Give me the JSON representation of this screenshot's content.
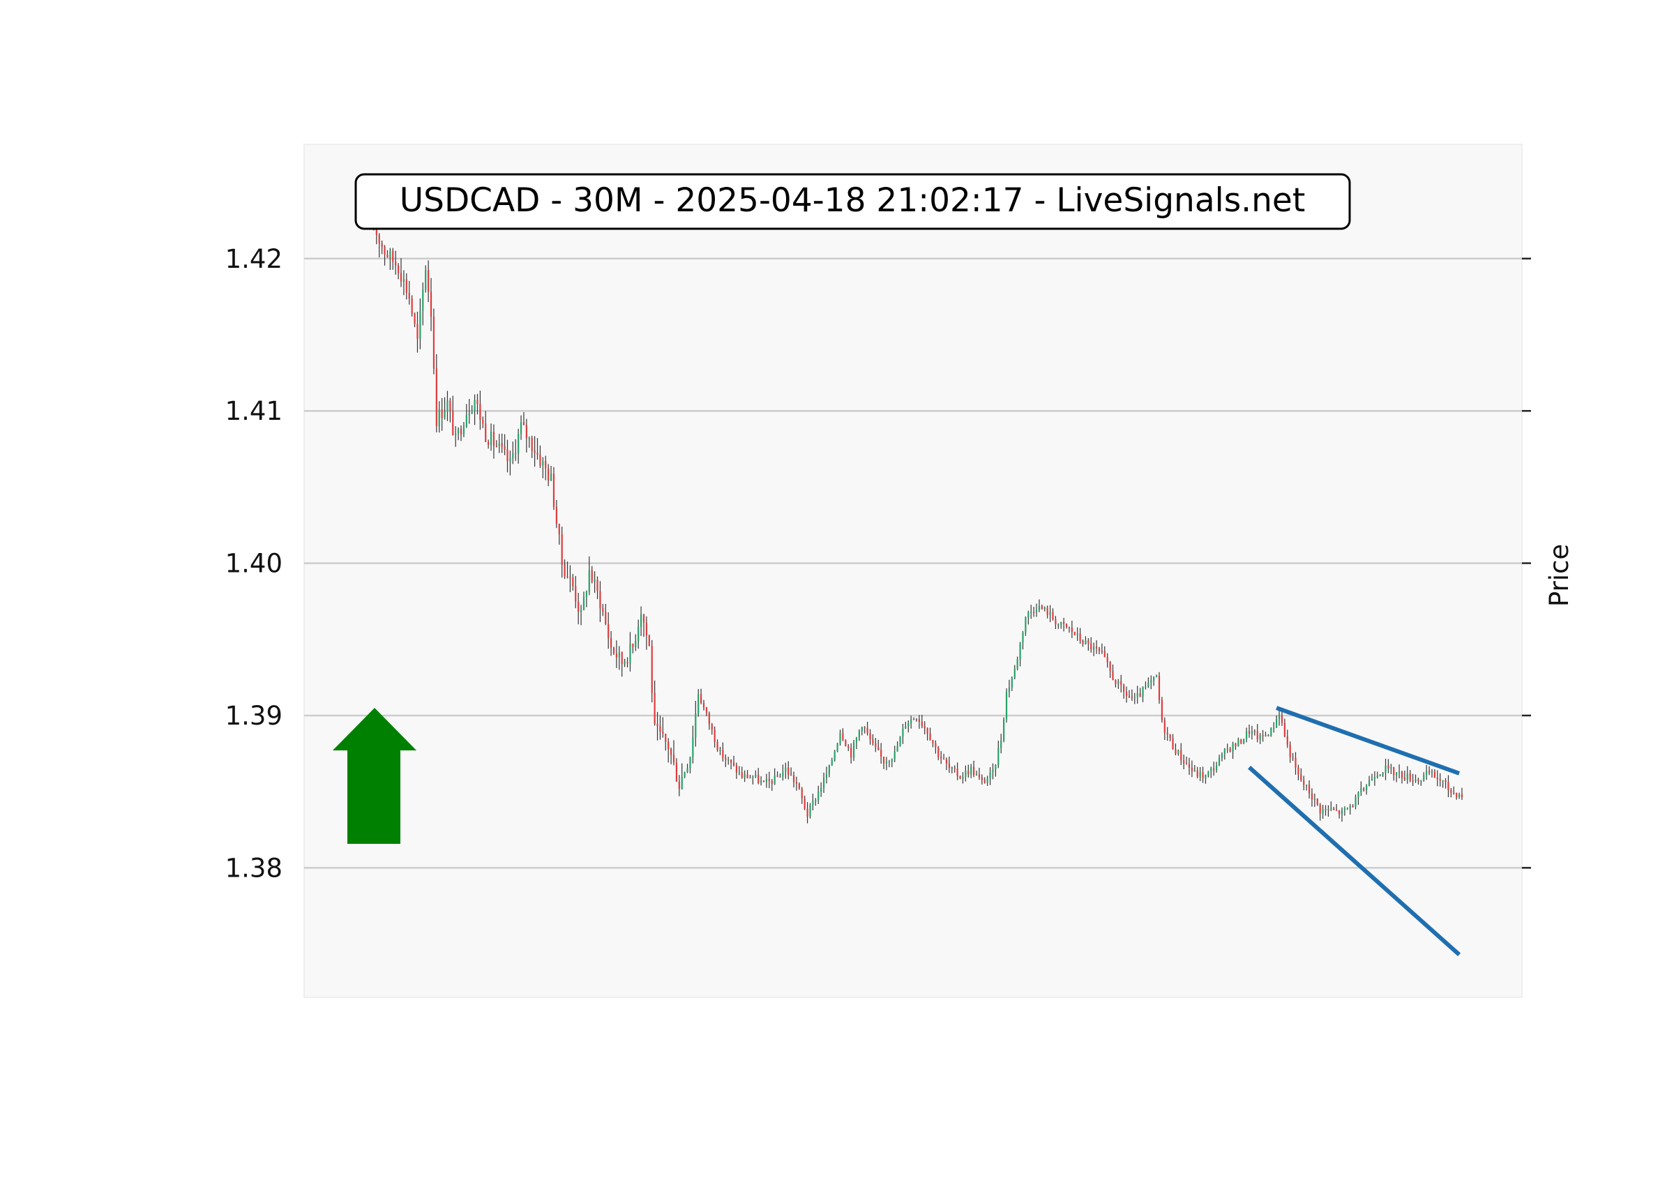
{
  "chart_data": {
    "type": "candlestick",
    "title": "USDCAD - 30M - 2025-04-18 21:02:17 - LiveSignals.net",
    "ylabel": "Price",
    "ylabel_position": "right",
    "ylim": [
      1.3715,
      1.4275
    ],
    "yticks": [
      {
        "value": 1.38,
        "label": "1.38"
      },
      {
        "value": 1.39,
        "label": "1.39"
      },
      {
        "value": 1.4,
        "label": "1.40"
      },
      {
        "value": 1.41,
        "label": "1.41"
      },
      {
        "value": 1.42,
        "label": "1.42"
      }
    ],
    "grid": true,
    "colors": {
      "up": "#26a269",
      "down": "#e03b3b",
      "wick": "#333333",
      "plot_bg": "#f8f8f8",
      "grid": "#cccccc",
      "trendline": "#1f6fb0",
      "arrow": "#008000"
    },
    "signal": {
      "direction": "up",
      "icon": "up-arrow-icon"
    },
    "price_path": [
      [
        0,
        1.4225
      ],
      [
        5,
        1.4205
      ],
      [
        10,
        1.4195
      ],
      [
        14,
        1.4175
      ],
      [
        17,
        1.4145
      ],
      [
        20,
        1.4195
      ],
      [
        22,
        1.4165
      ],
      [
        24,
        1.4095
      ],
      [
        28,
        1.4105
      ],
      [
        31,
        1.408
      ],
      [
        35,
        1.41
      ],
      [
        38,
        1.4108
      ],
      [
        42,
        1.4085
      ],
      [
        47,
        1.4075
      ],
      [
        51,
        1.4065
      ],
      [
        55,
        1.409
      ],
      [
        60,
        1.4075
      ],
      [
        63,
        1.4065
      ],
      [
        66,
        1.4055
      ],
      [
        70,
        1.4
      ],
      [
        74,
        1.3985
      ],
      [
        77,
        1.3965
      ],
      [
        80,
        1.3995
      ],
      [
        84,
        1.3975
      ],
      [
        88,
        1.3945
      ],
      [
        92,
        1.3935
      ],
      [
        96,
        1.3945
      ],
      [
        99,
        1.397
      ],
      [
        102,
        1.3945
      ],
      [
        104,
        1.389
      ],
      [
        109,
        1.388
      ],
      [
        113,
        1.3855
      ],
      [
        117,
        1.3875
      ],
      [
        120,
        1.3915
      ],
      [
        124,
        1.3895
      ],
      [
        128,
        1.3875
      ],
      [
        132,
        1.3868
      ],
      [
        136,
        1.386
      ],
      [
        140,
        1.386
      ],
      [
        144,
        1.3855
      ],
      [
        148,
        1.3858
      ],
      [
        152,
        1.3865
      ],
      [
        156,
        1.3855
      ],
      [
        160,
        1.3835
      ],
      [
        164,
        1.385
      ],
      [
        168,
        1.3865
      ],
      [
        172,
        1.389
      ],
      [
        176,
        1.3875
      ],
      [
        180,
        1.3895
      ],
      [
        184,
        1.388
      ],
      [
        188,
        1.387
      ],
      [
        192,
        1.3875
      ],
      [
        196,
        1.3895
      ],
      [
        200,
        1.39
      ],
      [
        204,
        1.389
      ],
      [
        208,
        1.3875
      ],
      [
        212,
        1.3865
      ],
      [
        216,
        1.386
      ],
      [
        220,
        1.3865
      ],
      [
        224,
        1.3856
      ],
      [
        228,
        1.3862
      ],
      [
        231,
        1.3885
      ],
      [
        233,
        1.3915
      ],
      [
        236,
        1.393
      ],
      [
        240,
        1.3965
      ],
      [
        244,
        1.3972
      ],
      [
        248,
        1.3968
      ],
      [
        252,
        1.396
      ],
      [
        256,
        1.3957
      ],
      [
        260,
        1.395
      ],
      [
        264,
        1.3945
      ],
      [
        268,
        1.394
      ],
      [
        272,
        1.3925
      ],
      [
        276,
        1.3915
      ],
      [
        280,
        1.391
      ],
      [
        284,
        1.3918
      ],
      [
        288,
        1.3925
      ],
      [
        290,
        1.3895
      ],
      [
        294,
        1.388
      ],
      [
        298,
        1.387
      ],
      [
        302,
        1.3862
      ],
      [
        306,
        1.386
      ],
      [
        310,
        1.3868
      ],
      [
        314,
        1.3878
      ],
      [
        318,
        1.3882
      ],
      [
        322,
        1.389
      ],
      [
        326,
        1.3885
      ],
      [
        330,
        1.389
      ],
      [
        333,
        1.3902
      ],
      [
        336,
        1.388
      ],
      [
        340,
        1.386
      ],
      [
        344,
        1.385
      ],
      [
        348,
        1.3838
      ],
      [
        352,
        1.3838
      ],
      [
        356,
        1.3836
      ],
      [
        360,
        1.3842
      ],
      [
        364,
        1.3852
      ],
      [
        368,
        1.3862
      ],
      [
        372,
        1.3865
      ],
      [
        376,
        1.3862
      ],
      [
        380,
        1.386
      ],
      [
        384,
        1.3858
      ],
      [
        388,
        1.3862
      ],
      [
        392,
        1.3858
      ],
      [
        396,
        1.385
      ],
      [
        400,
        1.3848
      ]
    ],
    "trendlines": [
      {
        "from": [
          332,
          1.3905
        ],
        "to": [
          399,
          1.3862
        ]
      },
      {
        "from": [
          322,
          1.3866
        ],
        "to": [
          399,
          1.3743
        ]
      }
    ]
  }
}
